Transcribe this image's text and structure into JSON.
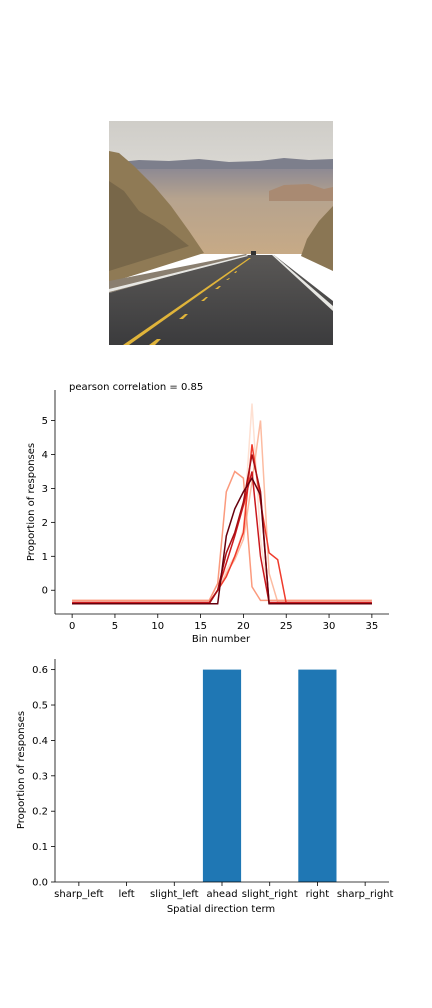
{
  "photo": {
    "subject": "desert highway"
  },
  "chart_data": [
    {
      "type": "line",
      "title": "pearson correlation = 0.85",
      "xlabel": "Bin number",
      "ylabel": "Proportion of responses",
      "xlim": [
        -2,
        37
      ],
      "ylim": [
        -0.7,
        5.9
      ],
      "xticks": [
        0,
        5,
        10,
        15,
        20,
        25,
        30,
        35
      ],
      "yticks": [
        0,
        1,
        2,
        3,
        4,
        5
      ],
      "grid": false,
      "colors": [
        "#fcbba1",
        "#fb9a7d",
        "#fb6a4a",
        "#ef3b2c",
        "#cb181d",
        "#a50f15",
        "#67000d"
      ],
      "series": [
        {
          "color": "#fee0d2",
          "points": [
            [
              0,
              -0.3
            ],
            [
              16,
              -0.3
            ],
            [
              17,
              0.2
            ],
            [
              18,
              0.6
            ],
            [
              19,
              1.0
            ],
            [
              20,
              1.8
            ],
            [
              21,
              5.5
            ],
            [
              22,
              1.5
            ],
            [
              23,
              -0.3
            ],
            [
              35,
              -0.3
            ]
          ]
        },
        {
          "color": "#fcbba1",
          "points": [
            [
              0,
              -0.35
            ],
            [
              16,
              -0.35
            ],
            [
              17,
              0.0
            ],
            [
              18,
              0.5
            ],
            [
              19,
              0.9
            ],
            [
              20,
              1.5
            ],
            [
              21,
              3.2
            ],
            [
              22,
              5.0
            ],
            [
              23,
              0.5
            ],
            [
              24,
              -0.35
            ],
            [
              35,
              -0.35
            ]
          ]
        },
        {
          "color": "#fb9a7d",
          "points": [
            [
              0,
              -0.3
            ],
            [
              16,
              -0.3
            ],
            [
              17,
              0.2
            ],
            [
              18,
              2.9
            ],
            [
              19,
              3.5
            ],
            [
              20,
              3.3
            ],
            [
              21,
              0.1
            ],
            [
              22,
              -0.3
            ],
            [
              35,
              -0.3
            ]
          ]
        },
        {
          "color": "#ef3b2c",
          "points": [
            [
              0,
              -0.38
            ],
            [
              16,
              -0.38
            ],
            [
              17,
              0.0
            ],
            [
              18,
              0.4
            ],
            [
              19,
              1.0
            ],
            [
              20,
              1.7
            ],
            [
              21,
              4.3
            ],
            [
              22,
              2.6
            ],
            [
              23,
              1.1
            ],
            [
              24,
              0.9
            ],
            [
              25,
              -0.38
            ],
            [
              35,
              -0.38
            ]
          ]
        },
        {
          "color": "#cb181d",
          "points": [
            [
              0,
              -0.36
            ],
            [
              16,
              -0.36
            ],
            [
              17,
              0.0
            ],
            [
              18,
              0.8
            ],
            [
              19,
              1.6
            ],
            [
              20,
              2.5
            ],
            [
              21,
              3.5
            ],
            [
              22,
              1.0
            ],
            [
              23,
              -0.36
            ],
            [
              35,
              -0.36
            ]
          ]
        },
        {
          "color": "#a50f15",
          "points": [
            [
              0,
              -0.4
            ],
            [
              16,
              -0.4
            ],
            [
              17,
              0.0
            ],
            [
              18,
              1.1
            ],
            [
              19,
              1.7
            ],
            [
              20,
              2.6
            ],
            [
              21,
              4.0
            ],
            [
              22,
              2.9
            ],
            [
              23,
              -0.4
            ],
            [
              35,
              -0.4
            ]
          ]
        },
        {
          "color": "#67000d",
          "points": [
            [
              0,
              -0.4
            ],
            [
              17,
              -0.4
            ],
            [
              18,
              1.6
            ],
            [
              19,
              2.4
            ],
            [
              20,
              2.9
            ],
            [
              21,
              3.3
            ],
            [
              22,
              2.8
            ],
            [
              23,
              -0.4
            ],
            [
              35,
              -0.4
            ]
          ]
        }
      ]
    },
    {
      "type": "bar",
      "xlabel": "Spatial direction term",
      "ylabel": "Proportion of responses",
      "categories": [
        "sharp_left",
        "left",
        "slight_left",
        "ahead",
        "slight_right",
        "right",
        "sharp_right"
      ],
      "values": [
        0,
        0,
        0,
        0.6,
        0,
        0.6,
        0
      ],
      "ylim": [
        0,
        0.63
      ],
      "yticks": [
        "0.0",
        "0.1",
        "0.2",
        "0.3",
        "0.4",
        "0.5",
        "0.6"
      ],
      "color": "#1f77b4",
      "grid": false
    }
  ]
}
